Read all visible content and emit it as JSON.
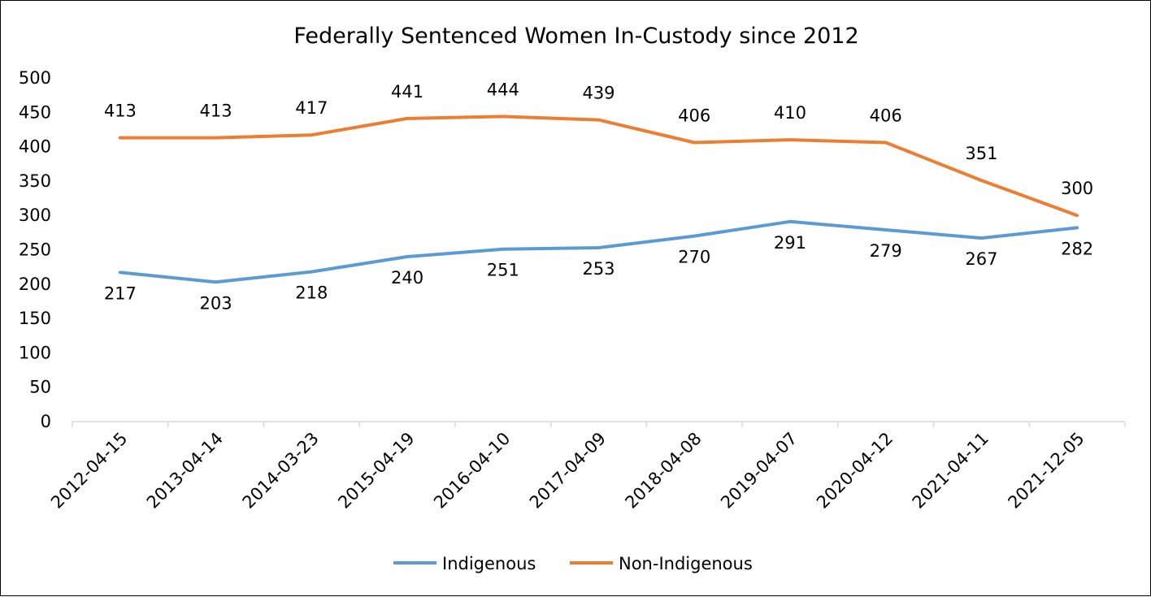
{
  "chart_data": {
    "type": "line",
    "title": "Federally Sentenced Women In-Custody since 2012",
    "categories": [
      "2012-04-15",
      "2013-04-14",
      "2014-03-23",
      "2015-04-19",
      "2016-04-10",
      "2017-04-09",
      "2018-04-08",
      "2019-04-07",
      "2020-04-12",
      "2021-04-11",
      "2021-12-05"
    ],
    "series": [
      {
        "name": "Indigenous",
        "color": "#5b9bd5",
        "values": [
          217,
          203,
          218,
          240,
          251,
          253,
          270,
          291,
          279,
          267,
          282
        ],
        "label_position": "below"
      },
      {
        "name": "Non-Indigenous",
        "color": "#ed7d31",
        "values": [
          413,
          413,
          417,
          441,
          444,
          439,
          406,
          410,
          406,
          351,
          300
        ],
        "label_position": "above"
      }
    ],
    "yticks": [
      0,
      50,
      100,
      150,
      200,
      250,
      300,
      350,
      400,
      450,
      500
    ],
    "ylim": [
      0,
      500
    ],
    "xlabel": "",
    "ylabel": "",
    "grid": false,
    "legend": "bottom"
  }
}
